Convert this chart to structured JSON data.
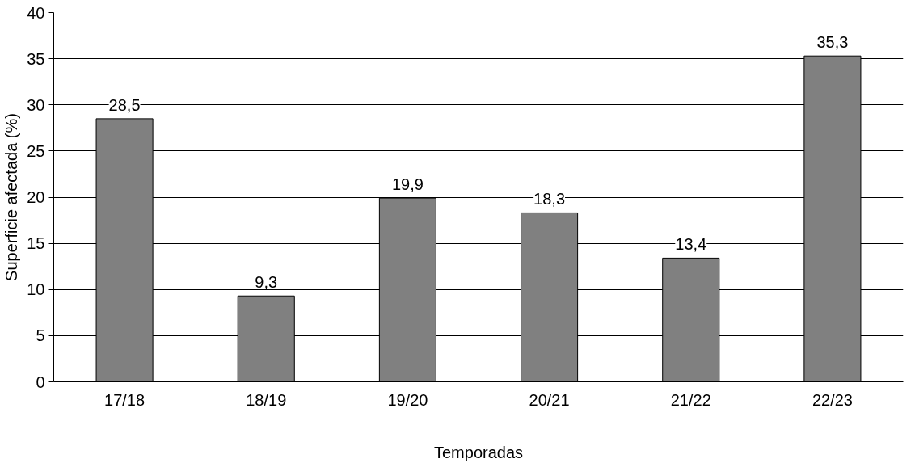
{
  "chart_data": {
    "type": "bar",
    "xlabel": "Temporadas",
    "ylabel": "Superficie afectada (%)",
    "categories": [
      "17/18",
      "18/19",
      "19/20",
      "20/21",
      "21/22",
      "22/23"
    ],
    "values": [
      28.5,
      9.3,
      19.9,
      18.3,
      13.4,
      35.3
    ],
    "value_labels": [
      "28,5",
      "9,3",
      "19,9",
      "18,3",
      "13,4",
      "35,3"
    ],
    "color": "#808080",
    "ylim": [
      0,
      40
    ],
    "yticks": [
      0,
      5,
      10,
      15,
      20,
      25,
      30,
      35,
      40
    ],
    "grid": "y"
  }
}
